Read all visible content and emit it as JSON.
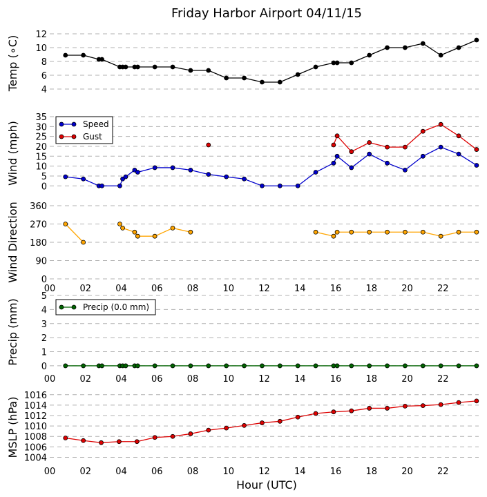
{
  "chart_data": {
    "title": "Friday Harbor Airport 04/11/15",
    "xlabel": "Hour (UTC)",
    "x_tick_labels": [
      "00",
      "02",
      "04",
      "06",
      "08",
      "10",
      "12",
      "14",
      "16",
      "18",
      "20",
      "22"
    ],
    "xlim": [
      0,
      24
    ],
    "panels": [
      {
        "id": "temp",
        "type": "line",
        "ylabel": "Temp (∘C)",
        "ylim": [
          3,
          12.5
        ],
        "yticks": [
          4,
          6,
          8,
          10,
          12
        ],
        "grid": true,
        "series": [
          {
            "color": "#000000",
            "x": [
              0.88,
              1.88,
              2.75,
              2.92,
              3.92,
              4.08,
              4.25,
              4.75,
              4.92,
              5.88,
              6.88,
              7.88,
              8.88,
              9.88,
              10.88,
              11.88,
              12.88,
              13.88,
              14.88,
              15.88,
              16.08,
              16.88,
              17.88,
              18.88,
              19.88,
              20.88,
              21.88,
              22.88,
              23.88
            ],
            "y": [
              8.9,
              8.9,
              8.3,
              8.3,
              7.2,
              7.2,
              7.2,
              7.2,
              7.2,
              7.2,
              7.2,
              6.7,
              6.7,
              5.6,
              5.6,
              5.0,
              5.0,
              6.1,
              7.2,
              7.8,
              7.8,
              7.8,
              8.9,
              10.0,
              10.0,
              10.6,
              8.9,
              10.0,
              11.1
            ]
          }
        ]
      },
      {
        "id": "wind",
        "type": "line",
        "ylabel": "Wind (mph)",
        "ylim": [
          -2,
          35
        ],
        "yticks": [
          0,
          5,
          10,
          15,
          20,
          25,
          30,
          35
        ],
        "grid": true,
        "legend": "top-left",
        "series": [
          {
            "name": "Speed",
            "color": "#0000cc",
            "x": [
              0.88,
              1.88,
              2.75,
              2.92,
              3.92,
              4.08,
              4.25,
              4.75,
              4.92,
              5.88,
              6.88,
              7.88,
              8.88,
              9.88,
              10.88,
              11.88,
              12.88,
              13.88,
              14.88,
              15.88,
              16.08,
              16.88,
              17.88,
              18.88,
              19.88,
              20.88,
              21.88,
              22.88,
              23.88
            ],
            "y": [
              4.6,
              3.5,
              0,
              0,
              0,
              3.5,
              4.6,
              8,
              6.9,
              9.2,
              9.2,
              8,
              5.8,
              4.6,
              3.5,
              0,
              0,
              0,
              6.9,
              11.5,
              15,
              9.2,
              16.1,
              11.5,
              8,
              15,
              19.6,
              16.1,
              10.4
            ]
          },
          {
            "name": "Gust",
            "color": "#dd0000",
            "x": [
              8.88,
              15.88,
              16.08,
              16.88,
              17.88,
              18.88,
              19.88,
              20.88,
              21.88,
              22.88,
              23.88
            ],
            "y": [
              20.7,
              20.7,
              25.3,
              17.3,
              21.9,
              19.6,
              19.6,
              27.6,
              31.1,
              25.3,
              18.4
            ],
            "segments": [
              [
                1,
                10
              ]
            ]
          }
        ]
      },
      {
        "id": "direction",
        "type": "line",
        "ylabel": "Wind Direction",
        "ylim": [
          0,
          360
        ],
        "yticks": [
          0,
          90,
          180,
          270,
          360
        ],
        "grid": true,
        "series": [
          {
            "color": "#ffa500",
            "x": [
              0.88,
              1.88,
              3.92,
              4.08,
              4.75,
              4.92,
              5.88,
              6.88,
              7.88,
              14.88,
              15.88,
              16.08,
              16.88,
              17.88,
              18.88,
              19.88,
              20.88,
              21.88,
              22.88,
              23.88
            ],
            "y": [
              270,
              180,
              270,
              250,
              230,
              210,
              210,
              250,
              230,
              230,
              210,
              230,
              230,
              230,
              230,
              230,
              230,
              210,
              230,
              230
            ],
            "segments": [
              [
                0,
                1
              ],
              [
                2,
                8
              ],
              [
                9,
                19
              ]
            ]
          }
        ]
      },
      {
        "id": "precip",
        "type": "line",
        "ylabel": "Precip (mm)",
        "ylim": [
          -0.2,
          5
        ],
        "yticks": [
          0,
          1,
          2,
          3,
          4,
          5
        ],
        "grid": true,
        "legend": "top-left",
        "series": [
          {
            "name": "Precip (0.0 mm)",
            "color": "#006400",
            "x": [
              0.88,
              1.88,
              2.75,
              2.92,
              3.92,
              4.08,
              4.25,
              4.75,
              4.92,
              5.88,
              6.88,
              7.88,
              8.88,
              9.88,
              10.88,
              11.88,
              12.88,
              13.88,
              14.88,
              15.88,
              16.08,
              16.88,
              17.88,
              18.88,
              19.88,
              20.88,
              21.88,
              22.88,
              23.88
            ],
            "y": [
              0,
              0,
              0,
              0,
              0,
              0,
              0,
              0,
              0,
              0,
              0,
              0,
              0,
              0,
              0,
              0,
              0,
              0,
              0,
              0,
              0,
              0,
              0,
              0,
              0,
              0,
              0,
              0,
              0
            ]
          }
        ]
      },
      {
        "id": "mslp",
        "type": "line",
        "ylabel": "MSLP (hPa)",
        "ylim": [
          1003,
          1016.5
        ],
        "yticks": [
          1004,
          1006,
          1008,
          1010,
          1012,
          1014,
          1016
        ],
        "grid": true,
        "series": [
          {
            "color": "#dd0000",
            "x": [
              0.88,
              1.88,
              2.88,
              3.88,
              4.88,
              5.88,
              6.88,
              7.88,
              8.88,
              9.88,
              10.88,
              11.88,
              12.88,
              13.88,
              14.88,
              15.88,
              16.88,
              17.88,
              18.88,
              19.88,
              20.88,
              21.88,
              22.88,
              23.88
            ],
            "y": [
              1007.7,
              1007.2,
              1006.8,
              1007.0,
              1007.0,
              1007.8,
              1008.0,
              1008.5,
              1009.2,
              1009.6,
              1010.1,
              1010.6,
              1010.9,
              1011.7,
              1012.4,
              1012.7,
              1012.9,
              1013.4,
              1013.4,
              1013.8,
              1013.9,
              1014.1,
              1014.5,
              1014.8
            ]
          }
        ]
      }
    ]
  }
}
